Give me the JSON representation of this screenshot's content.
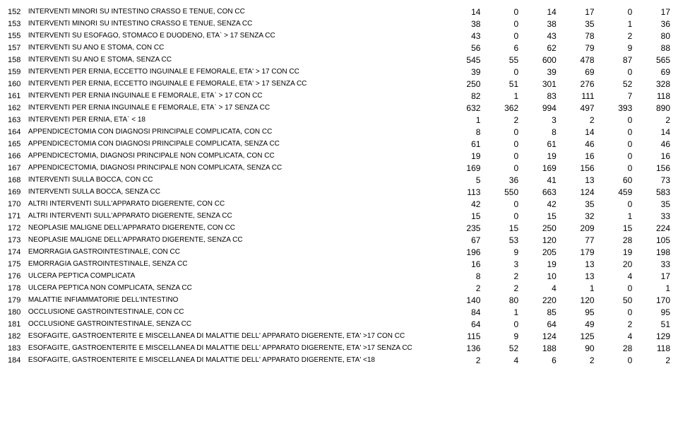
{
  "rows": [
    {
      "code": "152",
      "desc": "INTERVENTI MINORI SU INTESTINO CRASSO E TENUE, CON CC",
      "v": [
        14,
        0,
        14,
        17,
        0,
        17
      ]
    },
    {
      "code": "153",
      "desc": "INTERVENTI MINORI SU INTESTINO CRASSO E TENUE, SENZA CC",
      "v": [
        38,
        0,
        38,
        35,
        1,
        36
      ]
    },
    {
      "code": "155",
      "desc": "INTERVENTI SU ESOFAGO, STOMACO E DUODENO, ETA` > 17 SENZA CC",
      "v": [
        43,
        0,
        43,
        78,
        2,
        80
      ]
    },
    {
      "code": "157",
      "desc": "INTERVENTI SU ANO E STOMA, CON CC",
      "v": [
        56,
        6,
        62,
        79,
        9,
        88
      ]
    },
    {
      "code": "158",
      "desc": "INTERVENTI SU ANO E STOMA, SENZA CC",
      "v": [
        545,
        55,
        600,
        478,
        87,
        565
      ]
    },
    {
      "code": "159",
      "desc": "INTERVENTI PER ERNIA, ECCETTO INGUINALE E FEMORALE, ETA' > 17 CON CC",
      "v": [
        39,
        0,
        39,
        69,
        0,
        69
      ]
    },
    {
      "code": "160",
      "desc": "INTERVENTI PER ERNIA, ECCETTO INGUINALE E FEMORALE, ETA' > 17 SENZA CC",
      "v": [
        250,
        51,
        301,
        276,
        52,
        328
      ]
    },
    {
      "code": "161",
      "desc": "INTERVENTI PER ERNIA INGUINALE E FEMORALE, ETA` > 17 CON CC",
      "v": [
        82,
        1,
        83,
        111,
        7,
        118
      ]
    },
    {
      "code": "162",
      "desc": "INTERVENTI PER ERNIA INGUINALE E FEMORALE, ETA` > 17 SENZA CC",
      "v": [
        632,
        362,
        994,
        497,
        393,
        890
      ]
    },
    {
      "code": "163",
      "desc": "INTERVENTI PER ERNIA, ETA` < 18",
      "v": [
        1,
        2,
        3,
        2,
        0,
        2
      ]
    },
    {
      "code": "164",
      "desc": "APPENDICECTOMIA CON DIAGNOSI PRINCIPALE COMPLICATA, CON CC",
      "v": [
        8,
        0,
        8,
        14,
        0,
        14
      ]
    },
    {
      "code": "165",
      "desc": "APPENDICECTOMIA CON DIAGNOSI PRINCIPALE COMPLICATA, SENZA CC",
      "v": [
        61,
        0,
        61,
        46,
        0,
        46
      ]
    },
    {
      "code": "166",
      "desc": "APPENDICECTOMIA, DIAGNOSI PRINCIPALE NON COMPLICATA, CON CC",
      "v": [
        19,
        0,
        19,
        16,
        0,
        16
      ]
    },
    {
      "code": "167",
      "desc": "APPENDICECTOMIA, DIAGNOSI PRINCIPALE NON COMPLICATA, SENZA CC",
      "v": [
        169,
        0,
        169,
        156,
        0,
        156
      ]
    },
    {
      "code": "168",
      "desc": "INTERVENTI SULLA BOCCA, CON CC",
      "v": [
        5,
        36,
        41,
        13,
        60,
        73
      ]
    },
    {
      "code": "169",
      "desc": "INTERVENTI SULLA BOCCA, SENZA CC",
      "v": [
        113,
        550,
        663,
        124,
        459,
        583
      ]
    },
    {
      "code": "170",
      "desc": "ALTRI INTERVENTI SULL'APPARATO DIGERENTE, CON CC",
      "v": [
        42,
        0,
        42,
        35,
        0,
        35
      ]
    },
    {
      "code": "171",
      "desc": "ALTRI INTERVENTI SULL'APPARATO DIGERENTE, SENZA CC",
      "v": [
        15,
        0,
        15,
        32,
        1,
        33
      ]
    },
    {
      "code": "172",
      "desc": "NEOPLASIE MALIGNE DELL'APPARATO DIGERENTE, CON CC",
      "v": [
        235,
        15,
        250,
        209,
        15,
        224
      ]
    },
    {
      "code": "173",
      "desc": "NEOPLASIE MALIGNE DELL'APPARATO DIGERENTE, SENZA CC",
      "v": [
        67,
        53,
        120,
        77,
        28,
        105
      ]
    },
    {
      "code": "174",
      "desc": "EMORRAGIA GASTROINTESTINALE, CON CC",
      "v": [
        196,
        9,
        205,
        179,
        19,
        198
      ]
    },
    {
      "code": "175",
      "desc": "EMORRAGIA GASTROINTESTINALE, SENZA CC",
      "v": [
        16,
        3,
        19,
        13,
        20,
        33
      ]
    },
    {
      "code": "176",
      "desc": "ULCERA PEPTICA COMPLICATA",
      "v": [
        8,
        2,
        10,
        13,
        4,
        17
      ]
    },
    {
      "code": "178",
      "desc": "ULCERA PEPTICA NON COMPLICATA, SENZA CC",
      "v": [
        2,
        2,
        4,
        1,
        0,
        1
      ]
    },
    {
      "code": "179",
      "desc": "MALATTIE INFIAMMATORIE DELL'INTESTINO",
      "v": [
        140,
        80,
        220,
        120,
        50,
        170
      ]
    },
    {
      "code": "180",
      "desc": "OCCLUSIONE GASTROINTESTINALE, CON CC",
      "v": [
        84,
        1,
        85,
        95,
        0,
        95
      ]
    },
    {
      "code": "181",
      "desc": "OCCLUSIONE GASTROINTESTINALE, SENZA CC",
      "v": [
        64,
        0,
        64,
        49,
        2,
        51
      ]
    },
    {
      "code": "182",
      "desc": "ESOFAGITE, GASTROENTERITE E MISCELLANEA DI MALATTIE DELL' APPARATO DIGERENTE, ETA' >17 CON CC",
      "v": [
        115,
        9,
        124,
        125,
        4,
        129
      ]
    },
    {
      "code": "183",
      "desc": "ESOFAGITE, GASTROENTERITE E MISCELLANEA DI MALATTIE DELL' APPARATO DIGERENTE, ETA' >17 SENZA CC",
      "v": [
        136,
        52,
        188,
        90,
        28,
        118
      ]
    },
    {
      "code": "184",
      "desc": "ESOFAGITE, GASTROENTERITE E MISCELLANEA DI MALATTIE DELL' APPARATO DIGERENTE, ETA' <18",
      "v": [
        2,
        4,
        6,
        2,
        0,
        2
      ]
    }
  ]
}
